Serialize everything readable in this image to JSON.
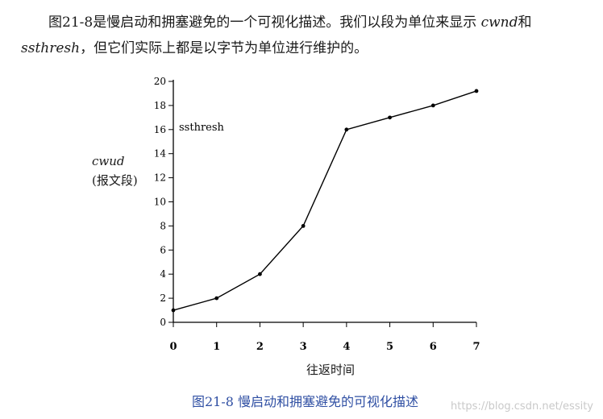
{
  "paragraph": {
    "part1": "图21-8是慢启动和拥塞避免的一个可视化描述。我们以段为单位来显示",
    "var1": "cwnd",
    "part2": "和",
    "var2": "ssthresh",
    "part3": "，但它们实际上都是以字节为单位进行维护的。"
  },
  "chart_data": {
    "type": "line",
    "x": [
      0,
      1,
      2,
      3,
      4,
      5,
      6,
      7
    ],
    "y": [
      1,
      2,
      4,
      8,
      16,
      17,
      18,
      19.2
    ],
    "xticks": [
      "0",
      "1",
      "2",
      "3",
      "4",
      "5",
      "6",
      "7"
    ],
    "yticks": [
      "0",
      "2",
      "4",
      "6",
      "8",
      "10",
      "12",
      "14",
      "16",
      "18",
      "20"
    ],
    "xlim": [
      0,
      7
    ],
    "ylim": [
      0,
      20
    ],
    "xlabel": "往返时间",
    "ylabel_var": "cwud",
    "ylabel_unit": "(报文段)",
    "annotation": "ssthresh",
    "grid": false,
    "line_color": "#000000"
  },
  "caption": "图21-8  慢启动和拥塞避免的可视化描述",
  "watermark": "https://blog.csdn.net/essity"
}
